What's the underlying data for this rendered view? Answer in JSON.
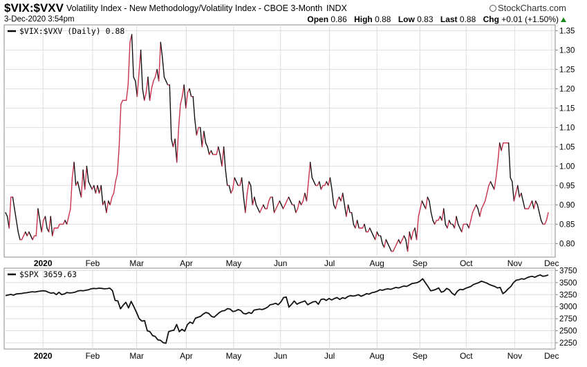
{
  "header": {
    "symbol": "$VIX:$VXV",
    "description": "Volatility Index - New Methodology/Volatility Index - CBOE 3-Month",
    "exchange": "INDX",
    "brand": "StockCharts.com",
    "timestamp": "3-Dec-2020 3:54pm",
    "open_label": "Open",
    "open": "0.86",
    "high_label": "High",
    "high": "0.88",
    "low_label": "Low",
    "low": "0.83",
    "last_label": "Last",
    "last": "0.88",
    "chg_label": "Chg",
    "chg": "+0.01 (+1.50%)"
  },
  "colors": {
    "up": "#c8324a",
    "down": "#111111",
    "grid": "#dddddd",
    "frame": "#888888",
    "accent_up": "#1a8a1a"
  },
  "chart_data": [
    {
      "type": "line",
      "legend": "$VIX:$VXV (Daily) 0.88",
      "ylim": [
        0.765,
        1.365
      ],
      "y_ticks": [
        "1.35",
        "1.30",
        "1.25",
        "1.20",
        "1.15",
        "1.10",
        "1.05",
        "1.00",
        "0.95",
        "0.90",
        "0.85",
        "0.80"
      ],
      "x_ticks": [
        "2020",
        "Feb",
        "Mar",
        "Apr",
        "May",
        "Jun",
        "Jul",
        "Aug",
        "Sep",
        "Oct",
        "Nov",
        "Dec"
      ],
      "values": [
        0.88,
        0.87,
        0.84,
        0.92,
        0.92,
        0.89,
        0.86,
        0.83,
        0.81,
        0.81,
        0.82,
        0.83,
        0.82,
        0.83,
        0.82,
        0.81,
        0.82,
        0.82,
        0.89,
        0.86,
        0.83,
        0.86,
        0.87,
        0.84,
        0.83,
        0.87,
        0.82,
        0.84,
        0.84,
        0.84,
        0.85,
        0.85,
        0.85,
        0.86,
        0.85,
        0.87,
        0.89,
        0.97,
        1.01,
        0.95,
        0.96,
        0.94,
        0.92,
        0.99,
        0.94,
        1.0,
        0.96,
        0.95,
        0.94,
        0.95,
        0.93,
        0.95,
        0.93,
        0.95,
        0.9,
        0.91,
        0.88,
        0.91,
        0.9,
        0.92,
        0.93,
        0.96,
        0.98,
        1.05,
        1.16,
        1.17,
        1.17,
        1.17,
        1.21,
        1.32,
        1.34,
        1.23,
        1.22,
        1.18,
        1.24,
        1.3,
        1.2,
        1.17,
        1.19,
        1.23,
        1.17,
        1.2,
        1.22,
        1.23,
        1.25,
        1.22,
        1.32,
        1.28,
        1.23,
        1.22,
        1.21,
        1.21,
        1.07,
        1.05,
        1.07,
        1.01,
        1.1,
        1.16,
        1.18,
        1.21,
        1.15,
        1.19,
        1.2,
        1.18,
        1.18,
        1.12,
        1.08,
        1.1,
        1.1,
        1.05,
        1.09,
        1.06,
        1.05,
        1.03,
        1.04,
        1.03,
        1.03,
        1.03,
        1.05,
        1.03,
        1.0,
        1.05,
        0.99,
        0.95,
        0.95,
        0.93,
        0.94,
        0.97,
        0.96,
        0.95,
        0.95,
        0.97,
        0.92,
        0.88,
        0.93,
        0.96,
        0.95,
        0.9,
        0.92,
        0.9,
        0.89,
        0.88,
        0.89,
        0.9,
        0.89,
        0.89,
        0.91,
        0.92,
        0.92,
        0.88,
        0.89,
        0.9,
        0.91,
        0.9,
        0.89,
        0.9,
        0.91,
        0.92,
        0.91,
        0.9,
        0.9,
        0.88,
        0.89,
        0.91,
        0.9,
        0.91,
        0.93,
        0.91,
        0.96,
        1.01,
        0.97,
        0.96,
        0.95,
        0.95,
        0.96,
        0.94,
        0.95,
        0.95,
        0.96,
        0.95,
        0.97,
        0.94,
        0.9,
        0.89,
        0.91,
        0.92,
        0.91,
        0.93,
        0.9,
        0.87,
        0.9,
        0.88,
        0.88,
        0.85,
        0.84,
        0.86,
        0.84,
        0.84,
        0.84,
        0.85,
        0.83,
        0.83,
        0.84,
        0.83,
        0.82,
        0.81,
        0.83,
        0.82,
        0.82,
        0.8,
        0.79,
        0.81,
        0.8,
        0.79,
        0.78,
        0.78,
        0.79,
        0.8,
        0.81,
        0.8,
        0.81,
        0.82,
        0.81,
        0.78,
        0.83,
        0.81,
        0.83,
        0.84,
        0.81,
        0.87,
        0.89,
        0.91,
        0.9,
        0.89,
        0.92,
        0.91,
        0.88,
        0.86,
        0.85,
        0.86,
        0.86,
        0.87,
        0.86,
        0.89,
        0.85,
        0.84,
        0.86,
        0.85,
        0.85,
        0.84,
        0.87,
        0.85,
        0.84,
        0.83,
        0.85,
        0.85,
        0.85,
        0.84,
        0.86,
        0.88,
        0.89,
        0.9,
        0.89,
        0.87,
        0.89,
        0.9,
        0.91,
        0.93,
        0.95,
        0.96,
        0.95,
        0.94,
        0.97,
        1.01,
        1.06,
        1.04,
        1.06,
        1.06,
        1.06,
        1.06,
        0.97,
        0.96,
        0.91,
        0.93,
        0.95,
        0.92,
        0.93,
        0.91,
        0.89,
        0.89,
        0.89,
        0.9,
        0.91,
        0.89,
        0.91,
        0.9,
        0.88,
        0.86,
        0.85,
        0.85,
        0.86,
        0.88
      ]
    },
    {
      "type": "line",
      "legend": "$SPX 3659.63",
      "ylim": [
        2120,
        3800
      ],
      "y_ticks": [
        "3750",
        "3500",
        "3250",
        "3000",
        "2750",
        "2500",
        "2250"
      ],
      "x_ticks": [
        "2020",
        "Feb",
        "Mar",
        "Apr",
        "May",
        "Jun",
        "Jul",
        "Aug",
        "Sep",
        "Oct",
        "Nov",
        "Dec"
      ],
      "values": [
        3230,
        3245,
        3255,
        3240,
        3265,
        3270,
        3275,
        3285,
        3290,
        3300,
        3310,
        3305,
        3315,
        3325,
        3330,
        3325,
        3300,
        3280,
        3290,
        3250,
        3300,
        3250,
        3265,
        3295,
        3285,
        3290,
        3300,
        3325,
        3335,
        3330,
        3340,
        3350,
        3370,
        3380,
        3375,
        3385,
        3380,
        3370,
        3375,
        3385,
        3330,
        3130,
        3120,
        2955,
        3030,
        3090,
        2975,
        3110,
        3000,
        2880,
        2750,
        2700,
        2710,
        2500,
        2480,
        2400,
        2380,
        2310,
        2300,
        2250,
        2240,
        2480,
        2500,
        2510,
        2630,
        2480,
        2530,
        2490,
        2625,
        2680,
        2650,
        2760,
        2780,
        2800,
        2850,
        2880,
        2860,
        2800,
        2780,
        2830,
        2880,
        2910,
        2920,
        2960,
        2950,
        2900,
        2910,
        2940,
        2920,
        2860,
        2850,
        2880,
        2860,
        2930,
        2940,
        2950,
        2940,
        2960,
        2990,
        3040,
        3050,
        3070,
        3040,
        3100,
        3190,
        3200,
        2990,
        3050,
        3120,
        3050,
        3080,
        3100,
        3120,
        3040,
        3070,
        3100,
        3110,
        3050,
        3150,
        3160,
        3130,
        3170,
        3140,
        3170,
        3190,
        3150,
        3185,
        3170,
        3210,
        3230,
        3220,
        3230,
        3250,
        3215,
        3240,
        3270,
        3260,
        3290,
        3300,
        3320,
        3350,
        3340,
        3360,
        3370,
        3360,
        3380,
        3400,
        3390,
        3410,
        3430,
        3420,
        3450,
        3480,
        3490,
        3500,
        3530,
        3580,
        3500,
        3420,
        3330,
        3340,
        3360,
        3390,
        3300,
        3320,
        3380,
        3350,
        3280,
        3240,
        3320,
        3360,
        3350,
        3380,
        3400,
        3420,
        3460,
        3480,
        3500,
        3530,
        3510,
        3490,
        3460,
        3440,
        3420,
        3390,
        3400,
        3270,
        3310,
        3370,
        3420,
        3500,
        3550,
        3560,
        3580,
        3570,
        3600,
        3620,
        3630,
        3610,
        3640,
        3660,
        3630,
        3640,
        3660
      ]
    }
  ]
}
